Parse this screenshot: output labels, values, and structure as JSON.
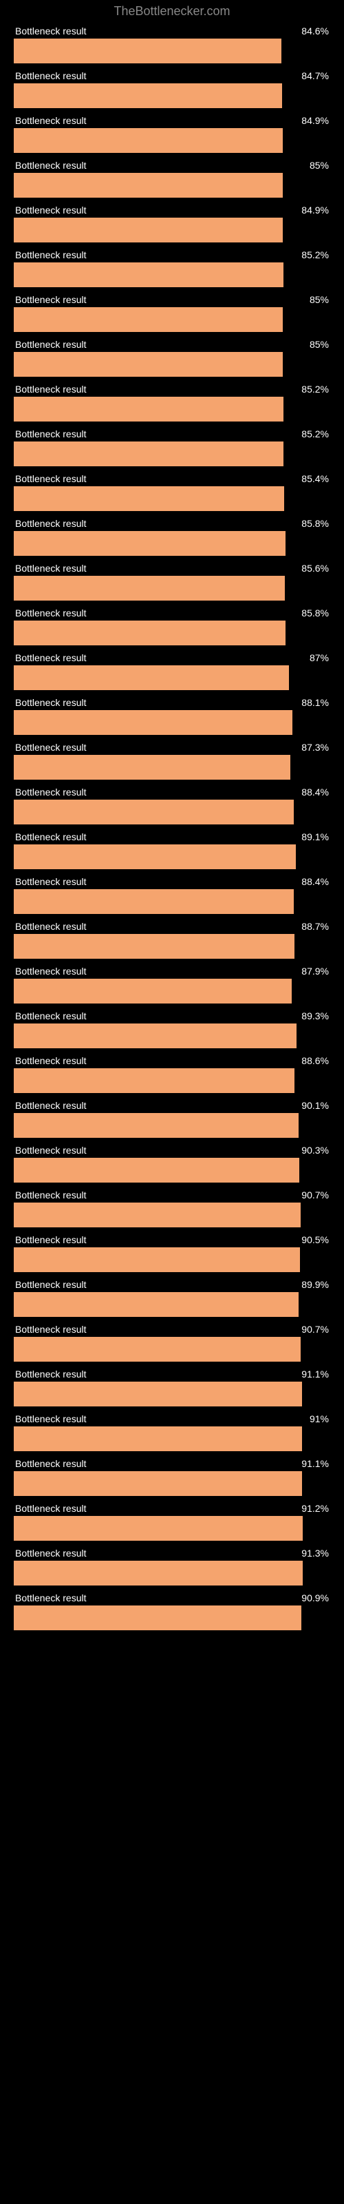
{
  "watermark": "TheBottlenecker.com",
  "label_text": "Bottleneck result",
  "bar_color": "#f5a46e",
  "bar_background": "#000000",
  "text_color": "#ffffff",
  "watermark_color": "#888888",
  "results": [
    {
      "value": "84.6%",
      "pct": 84.6
    },
    {
      "value": "84.7%",
      "pct": 84.7
    },
    {
      "value": "84.9%",
      "pct": 84.9
    },
    {
      "value": "85%",
      "pct": 85.0
    },
    {
      "value": "84.9%",
      "pct": 84.9
    },
    {
      "value": "85.2%",
      "pct": 85.2
    },
    {
      "value": "85%",
      "pct": 85.0
    },
    {
      "value": "85%",
      "pct": 85.0
    },
    {
      "value": "85.2%",
      "pct": 85.2
    },
    {
      "value": "85.2%",
      "pct": 85.2
    },
    {
      "value": "85.4%",
      "pct": 85.4
    },
    {
      "value": "85.8%",
      "pct": 85.8
    },
    {
      "value": "85.6%",
      "pct": 85.6
    },
    {
      "value": "85.8%",
      "pct": 85.8
    },
    {
      "value": "87%",
      "pct": 87.0
    },
    {
      "value": "88.1%",
      "pct": 88.1
    },
    {
      "value": "87.3%",
      "pct": 87.3
    },
    {
      "value": "88.4%",
      "pct": 88.4
    },
    {
      "value": "89.1%",
      "pct": 89.1
    },
    {
      "value": "88.4%",
      "pct": 88.4
    },
    {
      "value": "88.7%",
      "pct": 88.7
    },
    {
      "value": "87.9%",
      "pct": 87.9
    },
    {
      "value": "89.3%",
      "pct": 89.3
    },
    {
      "value": "88.6%",
      "pct": 88.6
    },
    {
      "value": "90.1%",
      "pct": 90.1
    },
    {
      "value": "90.3%",
      "pct": 90.3
    },
    {
      "value": "90.7%",
      "pct": 90.7
    },
    {
      "value": "90.5%",
      "pct": 90.5
    },
    {
      "value": "89.9%",
      "pct": 89.9
    },
    {
      "value": "90.7%",
      "pct": 90.7
    },
    {
      "value": "91.1%",
      "pct": 91.1
    },
    {
      "value": "91%",
      "pct": 91.0
    },
    {
      "value": "91.1%",
      "pct": 91.1
    },
    {
      "value": "91.2%",
      "pct": 91.2
    },
    {
      "value": "91.3%",
      "pct": 91.3
    },
    {
      "value": "90.9%",
      "pct": 90.9
    }
  ]
}
